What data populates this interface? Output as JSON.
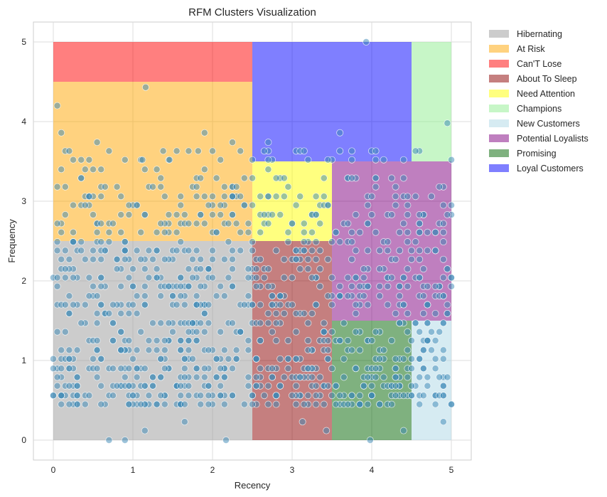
{
  "chart_data": {
    "type": "scatter",
    "title": "RFM Clusters Visualization",
    "xlabel": "Recency",
    "ylabel": "Frequency",
    "xlim": [
      -0.25,
      5.25
    ],
    "ylim": [
      -0.25,
      5.25
    ],
    "xticks": [
      "0",
      "1",
      "2",
      "3",
      "4",
      "5"
    ],
    "yticks": [
      "0",
      "1",
      "2",
      "3",
      "4",
      "5"
    ],
    "grid": true,
    "legend_position": "outside-top-right",
    "point_color": "#3a87b5",
    "regions": [
      {
        "name": "Hibernating",
        "color": "#999999",
        "x": [
          0,
          2.5
        ],
        "y": [
          0,
          2.5
        ]
      },
      {
        "name": "At Risk",
        "color": "#ffa500",
        "x": [
          0,
          2.5
        ],
        "y": [
          2.5,
          4.5
        ]
      },
      {
        "name": "Can'T Lose",
        "color": "#ff0000",
        "x": [
          0,
          2.5
        ],
        "y": [
          4.5,
          5
        ]
      },
      {
        "name": "About To Sleep",
        "color": "#8b0000",
        "x": [
          2.5,
          3.5
        ],
        "y": [
          0,
          2.5
        ]
      },
      {
        "name": "Need Attention",
        "color": "#ffff00",
        "x": [
          2.5,
          3.5
        ],
        "y": [
          2.5,
          3.5
        ]
      },
      {
        "name": "Champions",
        "color": "#90ee90",
        "x": [
          4.5,
          5
        ],
        "y": [
          3.5,
          5
        ]
      },
      {
        "name": "New Customers",
        "color": "#add8e6",
        "x": [
          4.5,
          5
        ],
        "y": [
          0,
          1.5
        ]
      },
      {
        "name": "Potential Loyalists",
        "color": "#800080",
        "x": [
          3.5,
          5
        ],
        "y": [
          1.5,
          3.5
        ]
      },
      {
        "name": "Promising",
        "color": "#006400",
        "x": [
          3.5,
          4.5
        ],
        "y": [
          0,
          1.5
        ]
      },
      {
        "name": "Loyal Customers",
        "color": "#0000ff",
        "x": [
          2.5,
          4.5
        ],
        "y": [
          3.5,
          5
        ]
      }
    ],
    "region_opacity": 0.5,
    "frequency_levels": [
      0.45,
      0.56,
      0.68,
      0.79,
      0.9,
      1.02,
      1.13,
      1.25,
      1.36,
      1.47,
      1.59,
      1.7,
      1.81,
      1.93,
      2.04,
      2.15,
      2.27,
      2.38,
      2.49,
      2.61,
      2.72,
      2.83,
      2.95,
      3.06,
      3.18,
      3.29,
      3.4,
      3.52,
      3.63
    ],
    "frequency_weights": [
      6,
      8,
      7,
      7,
      6,
      5,
      5,
      5,
      4,
      4,
      4,
      5,
      5,
      5,
      5,
      4,
      4,
      4,
      4,
      4,
      4,
      4,
      3,
      3,
      2,
      2,
      1,
      1,
      1
    ],
    "random_points": 1050,
    "points": [
      {
        "x": 0.7,
        "y": 0.0
      },
      {
        "x": 0.9,
        "y": 0.0
      },
      {
        "x": 1.15,
        "y": 0.12
      },
      {
        "x": 1.65,
        "y": 0.23
      },
      {
        "x": 2.17,
        "y": 0.0
      },
      {
        "x": 3.13,
        "y": 0.23
      },
      {
        "x": 3.43,
        "y": 0.12
      },
      {
        "x": 3.98,
        "y": 0.0
      },
      {
        "x": 4.4,
        "y": 0.12
      },
      {
        "x": 4.9,
        "y": 0.23
      },
      {
        "x": 0.05,
        "y": 4.2
      },
      {
        "x": 0.1,
        "y": 3.86
      },
      {
        "x": 1.16,
        "y": 4.43
      },
      {
        "x": 1.9,
        "y": 3.86
      },
      {
        "x": 1.38,
        "y": 3.63
      },
      {
        "x": 1.55,
        "y": 3.63
      },
      {
        "x": 1.82,
        "y": 3.63
      },
      {
        "x": 2.25,
        "y": 3.74
      },
      {
        "x": 2.35,
        "y": 3.63
      },
      {
        "x": 0.55,
        "y": 3.74
      },
      {
        "x": 0.35,
        "y": 3.52
      },
      {
        "x": 1.12,
        "y": 3.52
      },
      {
        "x": 1.46,
        "y": 3.52
      },
      {
        "x": 3.93,
        "y": 5.0
      },
      {
        "x": 4.95,
        "y": 3.98
      },
      {
        "x": 5.0,
        "y": 3.52
      },
      {
        "x": 3.6,
        "y": 3.86
      },
      {
        "x": 2.7,
        "y": 3.74
      },
      {
        "x": 3.1,
        "y": 3.63
      },
      {
        "x": 3.15,
        "y": 3.63
      },
      {
        "x": 3.75,
        "y": 3.63
      },
      {
        "x": 4.0,
        "y": 3.63
      },
      {
        "x": 4.05,
        "y": 3.63
      },
      {
        "x": 3.75,
        "y": 3.52
      },
      {
        "x": 4.4,
        "y": 3.52
      },
      {
        "x": 3.2,
        "y": 3.52
      }
    ]
  }
}
